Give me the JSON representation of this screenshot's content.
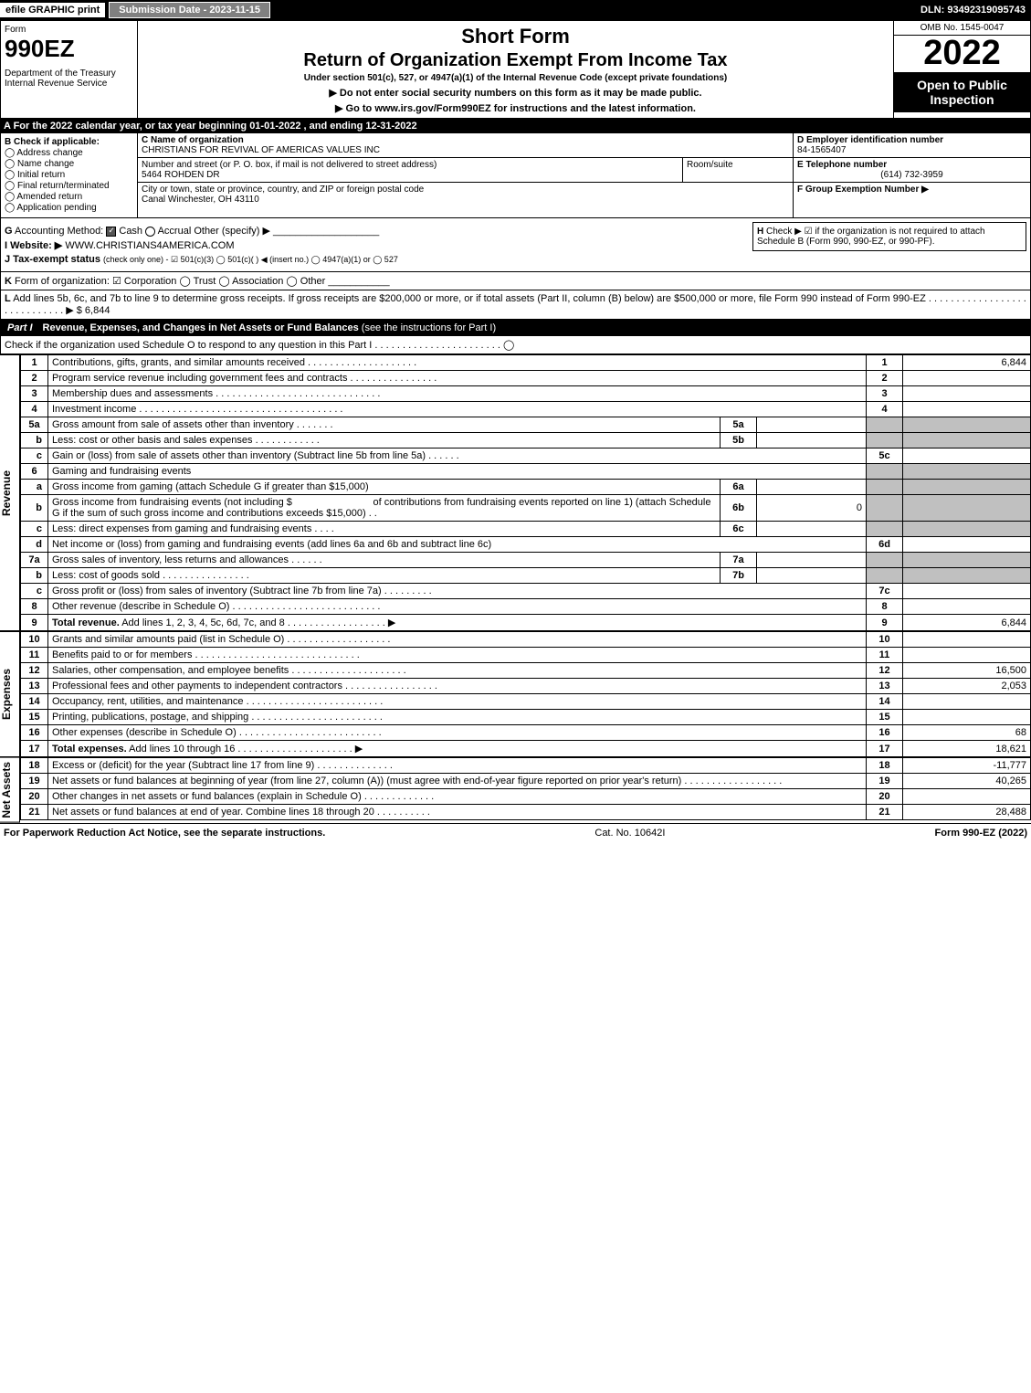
{
  "topbar": {
    "efile": "efile GRAPHIC print",
    "submission_label": "Submission Date - 2023-11-15",
    "dln": "DLN: 93492319095743"
  },
  "header": {
    "form_label": "Form",
    "form_number": "990EZ",
    "dept": "Department of the Treasury\nInternal Revenue Service",
    "short_form": "Short Form",
    "return_title": "Return of Organization Exempt From Income Tax",
    "under": "Under section 501(c), 527, or 4947(a)(1) of the Internal Revenue Code (except private foundations)",
    "no_ssn": "▶ Do not enter social security numbers on this form as it may be made public.",
    "goto": "▶ Go to www.irs.gov/Form990EZ for instructions and the latest information.",
    "goto_link": "www.irs.gov/Form990EZ",
    "omb": "OMB No. 1545-0047",
    "year": "2022",
    "open": "Open to Public Inspection"
  },
  "row_a": "A  For the 2022 calendar year, or tax year beginning 01-01-2022  , and ending 12-31-2022",
  "section_b": {
    "label": "B",
    "check_if": "Check if applicable:",
    "items": [
      "Address change",
      "Name change",
      "Initial return",
      "Final return/terminated",
      "Amended return",
      "Application pending"
    ]
  },
  "section_c": {
    "label": "C",
    "name_label": "Name of organization",
    "name": "CHRISTIANS FOR REVIVAL OF AMERICAS VALUES INC",
    "addr_label": "Number and street (or P. O. box, if mail is not delivered to street address)",
    "addr": "5464 ROHDEN DR",
    "room_label": "Room/suite",
    "city_label": "City or town, state or province, country, and ZIP or foreign postal code",
    "city": "Canal Winchester, OH  43110"
  },
  "section_d": {
    "d_label": "D Employer identification number",
    "ein": "84-1565407",
    "e_label": "E Telephone number",
    "phone": "(614) 732-3959",
    "f_label": "F Group Exemption Number  ▶"
  },
  "g": {
    "label": "G",
    "text": "Accounting Method:",
    "cash": "Cash",
    "accrual": "Accrual",
    "other": "Other (specify) ▶"
  },
  "h": {
    "label": "H",
    "text": "Check ▶ ☑ if the organization is not required to attach Schedule B (Form 990, 990-EZ, or 990-PF)."
  },
  "i": {
    "label": "I Website: ▶",
    "value": "WWW.CHRISTIANS4AMERICA.COM"
  },
  "j": {
    "label": "J Tax-exempt status",
    "text": "(check only one) - ☑ 501(c)(3) ◯ 501(c)(  ) ◀ (insert no.) ◯ 4947(a)(1) or ◯ 527"
  },
  "k": {
    "label": "K",
    "text": "Form of organization:  ☑ Corporation  ◯ Trust  ◯ Association  ◯ Other"
  },
  "l": {
    "label": "L",
    "text": "Add lines 5b, 6c, and 7b to line 9 to determine gross receipts. If gross receipts are $200,000 or more, or if total assets (Part II, column (B) below) are $500,000 or more, file Form 990 instead of Form 990-EZ . . . . . . . . . . . . . . . . . . . . . . . . . . . . . ▶ $ 6,844"
  },
  "part1": {
    "label": "Part I",
    "title": "Revenue, Expenses, and Changes in Net Assets or Fund Balances",
    "sub": "(see the instructions for Part I)",
    "sched_o": "Check if the organization used Schedule O to respond to any question in this Part I . . . . . . . . . . . . . . . . . . . . . . . ◯"
  },
  "revenue_label": "Revenue",
  "expenses_label": "Expenses",
  "netassets_label": "Net Assets",
  "lines": {
    "1": {
      "desc": "Contributions, gifts, grants, and similar amounts received",
      "amount": "6,844"
    },
    "2": {
      "desc": "Program service revenue including government fees and contracts",
      "amount": ""
    },
    "3": {
      "desc": "Membership dues and assessments",
      "amount": ""
    },
    "4": {
      "desc": "Investment income",
      "amount": ""
    },
    "5a": {
      "desc": "Gross amount from sale of assets other than inventory",
      "sub": "5a",
      "subval": ""
    },
    "5b": {
      "desc": "Less: cost or other basis and sales expenses",
      "sub": "5b",
      "subval": ""
    },
    "5c": {
      "desc": "Gain or (loss) from sale of assets other than inventory (Subtract line 5b from line 5a)",
      "amount": ""
    },
    "6": {
      "desc": "Gaming and fundraising events"
    },
    "6a": {
      "desc": "Gross income from gaming (attach Schedule G if greater than $15,000)",
      "sub": "6a",
      "subval": ""
    },
    "6b": {
      "desc_pre": "Gross income from fundraising events (not including $",
      "desc_mid": "of contributions from fundraising events reported on line 1) (attach Schedule G if the sum of such gross income and contributions exceeds $15,000)",
      "sub": "6b",
      "subval": "0"
    },
    "6c": {
      "desc": "Less: direct expenses from gaming and fundraising events",
      "sub": "6c",
      "subval": ""
    },
    "6d": {
      "desc": "Net income or (loss) from gaming and fundraising events (add lines 6a and 6b and subtract line 6c)",
      "amount": ""
    },
    "7a": {
      "desc": "Gross sales of inventory, less returns and allowances",
      "sub": "7a",
      "subval": ""
    },
    "7b": {
      "desc": "Less: cost of goods sold",
      "sub": "7b",
      "subval": ""
    },
    "7c": {
      "desc": "Gross profit or (loss) from sales of inventory (Subtract line 7b from line 7a)",
      "amount": ""
    },
    "8": {
      "desc": "Other revenue (describe in Schedule O)",
      "amount": ""
    },
    "9": {
      "desc": "Total revenue. Add lines 1, 2, 3, 4, 5c, 6d, 7c, and 8",
      "amount": "6,844",
      "bold": true
    },
    "10": {
      "desc": "Grants and similar amounts paid (list in Schedule O)",
      "amount": ""
    },
    "11": {
      "desc": "Benefits paid to or for members",
      "amount": ""
    },
    "12": {
      "desc": "Salaries, other compensation, and employee benefits",
      "amount": "16,500"
    },
    "13": {
      "desc": "Professional fees and other payments to independent contractors",
      "amount": "2,053"
    },
    "14": {
      "desc": "Occupancy, rent, utilities, and maintenance",
      "amount": ""
    },
    "15": {
      "desc": "Printing, publications, postage, and shipping",
      "amount": ""
    },
    "16": {
      "desc": "Other expenses (describe in Schedule O)",
      "amount": "68"
    },
    "17": {
      "desc": "Total expenses. Add lines 10 through 16",
      "amount": "18,621",
      "bold": true
    },
    "18": {
      "desc": "Excess or (deficit) for the year (Subtract line 17 from line 9)",
      "amount": "-11,777"
    },
    "19": {
      "desc": "Net assets or fund balances at beginning of year (from line 27, column (A)) (must agree with end-of-year figure reported on prior year's return)",
      "amount": "40,265"
    },
    "20": {
      "desc": "Other changes in net assets or fund balances (explain in Schedule O)",
      "amount": ""
    },
    "21": {
      "desc": "Net assets or fund balances at end of year. Combine lines 18 through 20",
      "amount": "28,488"
    }
  },
  "footer": {
    "left": "For Paperwork Reduction Act Notice, see the separate instructions.",
    "center": "Cat. No. 10642I",
    "right": "Form 990-EZ (2022)"
  },
  "colors": {
    "black": "#000000",
    "grey": "#c0c0c0",
    "darkgrey": "#808080"
  }
}
